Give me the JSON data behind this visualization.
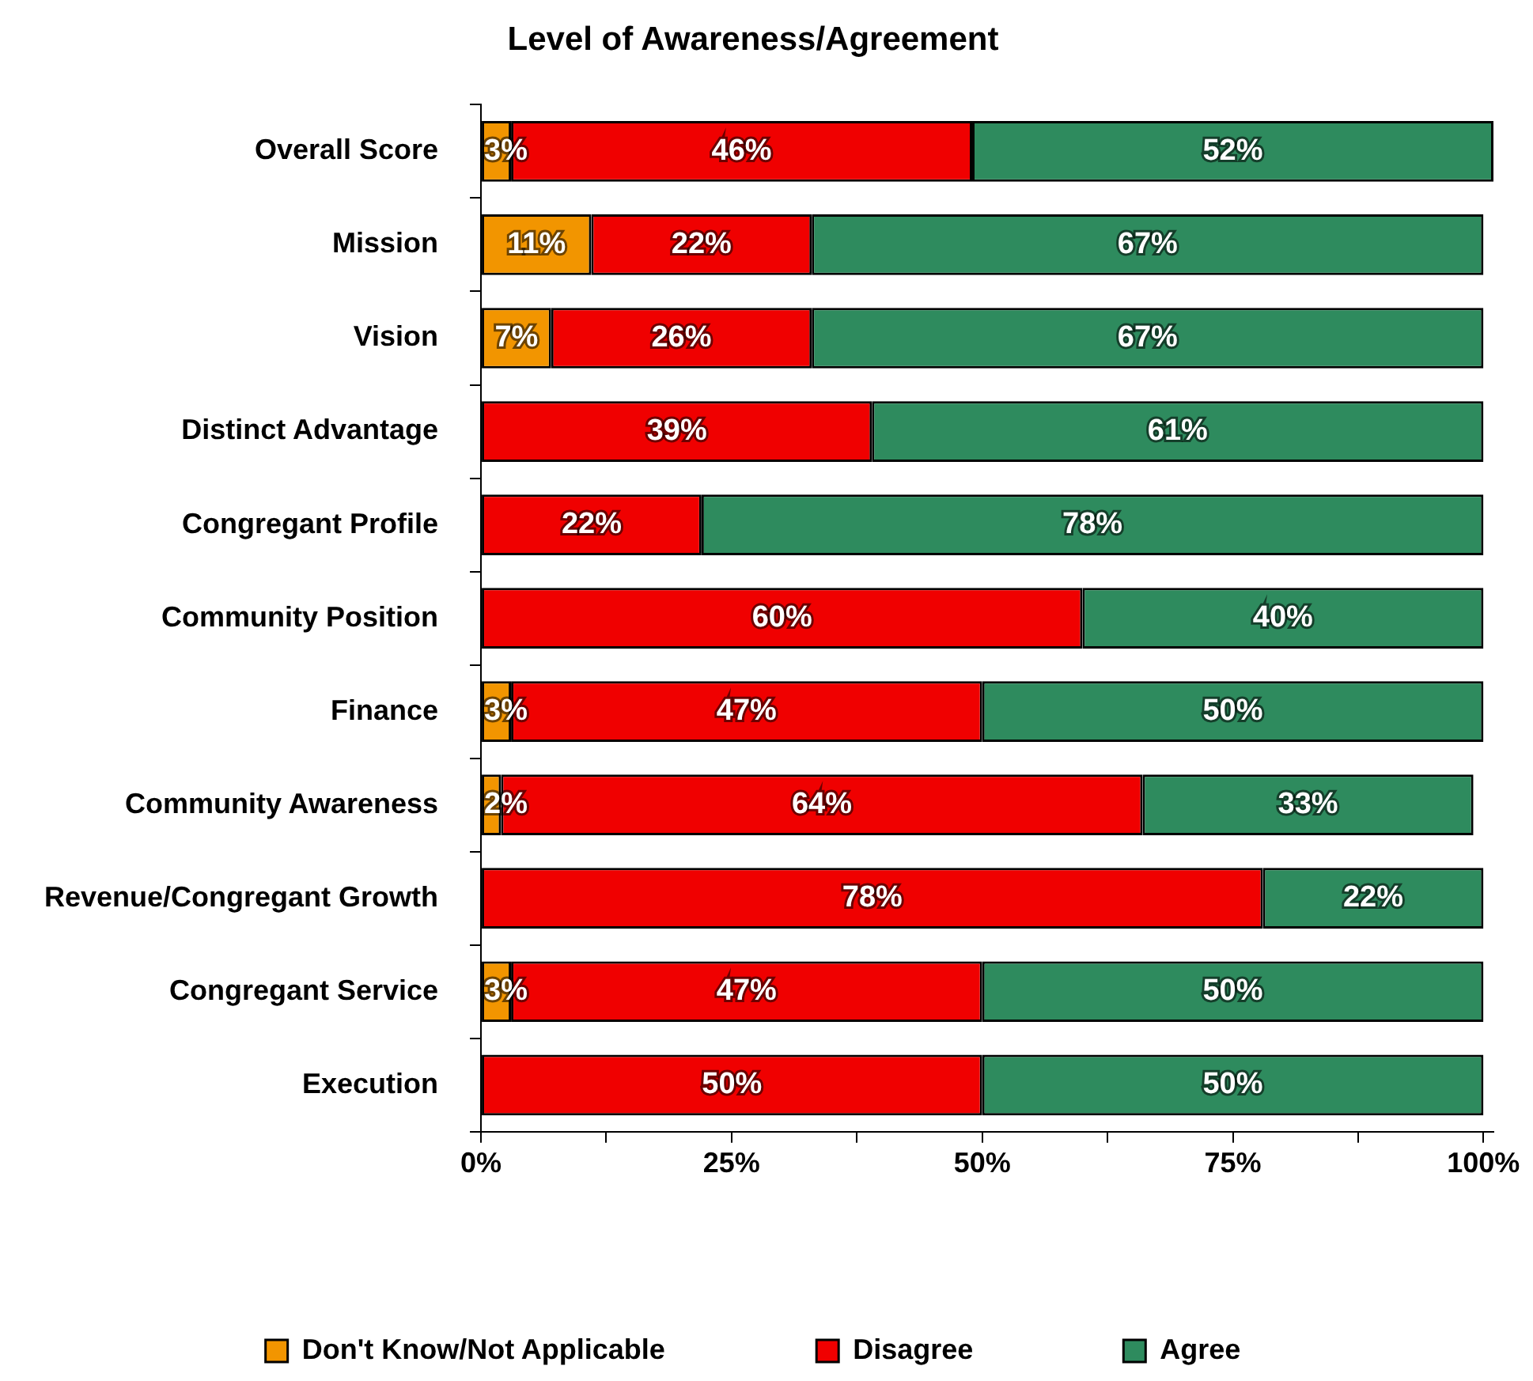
{
  "chart_data": {
    "type": "bar",
    "orientation": "horizontal",
    "stacked": true,
    "title": "Level of Awareness/Agreement",
    "categories": [
      "Overall Score",
      "Mission",
      "Vision",
      "Distinct Advantage",
      "Congregant Profile",
      "Community Position",
      "Finance",
      "Community Awareness",
      "Revenue/Congregant Growth",
      "Congregant Service",
      "Execution"
    ],
    "series": [
      {
        "name": "Don't Know/Not Applicable",
        "color": "#f29500",
        "values": [
          3,
          11,
          7,
          0,
          0,
          0,
          3,
          2,
          0,
          3,
          0
        ],
        "value_labels": [
          "3%",
          "11%",
          "7%",
          null,
          null,
          null,
          "3%",
          "2%",
          null,
          "3%",
          null
        ]
      },
      {
        "name": "Disagree",
        "color": "#f00000",
        "values": [
          46,
          22,
          26,
          39,
          22,
          60,
          47,
          64,
          78,
          47,
          50
        ],
        "value_labels": [
          "46%",
          "22%",
          "26%",
          "39%",
          "22%",
          "60%",
          "47%",
          "64%",
          "78%",
          "47%",
          "50%"
        ]
      },
      {
        "name": "Agree",
        "color": "#2e8b5e",
        "values": [
          52,
          67,
          67,
          61,
          78,
          40,
          50,
          33,
          22,
          50,
          50
        ],
        "value_labels": [
          "52%",
          "67%",
          "67%",
          "61%",
          "78%",
          "40%",
          "50%",
          "33%",
          "22%",
          "50%",
          "50%"
        ]
      }
    ],
    "xlim": [
      0,
      101
    ],
    "xticks": [
      {
        "value": 0,
        "label": "0%"
      },
      {
        "value": 12.5,
        "label": null
      },
      {
        "value": 25,
        "label": "25%"
      },
      {
        "value": 37.5,
        "label": null
      },
      {
        "value": 50,
        "label": "50%"
      },
      {
        "value": 62.5,
        "label": null
      },
      {
        "value": 75,
        "label": "75%"
      },
      {
        "value": 87.5,
        "label": null
      },
      {
        "value": 100,
        "label": "100%"
      }
    ],
    "grid": false,
    "legend": "bottom"
  }
}
